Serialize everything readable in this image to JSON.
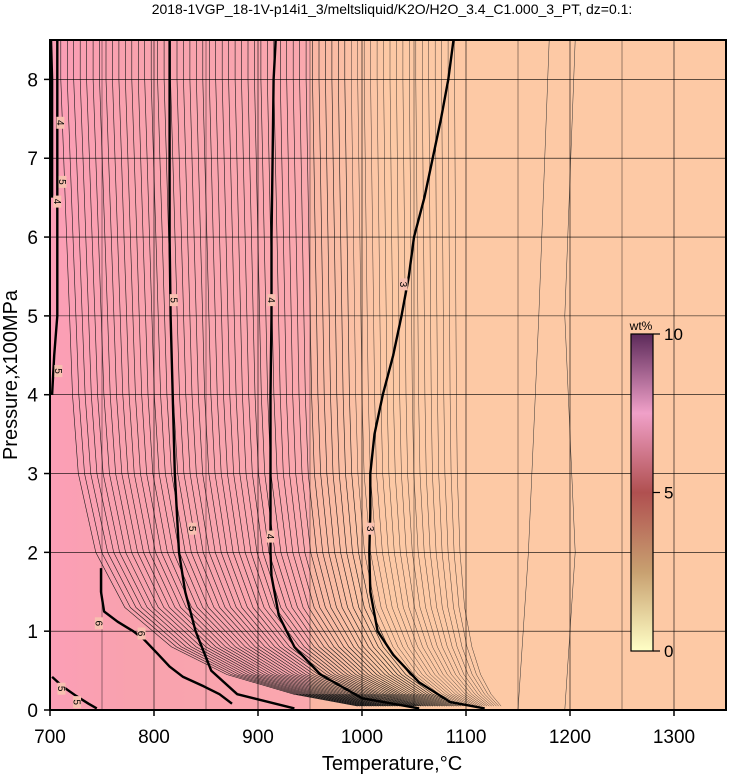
{
  "chart_data": {
    "type": "heatmap",
    "title": "2018-1VGP_18-1V-p14i1_3/meltsliquid/K2O/H2O_3.4_C1.000_3_PT, dz=0.1:",
    "xlabel": "Temperature,°C",
    "ylabel": "Pressure,x100MPa",
    "xlim": [
      700,
      1350
    ],
    "ylim": [
      0,
      8.5
    ],
    "x_ticks": [
      700,
      800,
      900,
      1000,
      1100,
      1200,
      1300
    ],
    "x_tick_labels": [
      "700",
      "800",
      "900",
      "1000",
      "1100",
      "1200",
      "1300"
    ],
    "y_ticks": [
      0,
      1,
      2,
      3,
      4,
      5,
      6,
      7,
      8
    ],
    "y_tick_labels": [
      "0",
      "1",
      "2",
      "3",
      "4",
      "5",
      "6",
      "7",
      "8"
    ],
    "grid": true,
    "colorbar": {
      "unit": "wt%",
      "min": 0,
      "max": 10,
      "ticks": [
        0,
        5,
        10
      ],
      "tick_labels": [
        "0",
        "5",
        "10"
      ],
      "colors": [
        "#ffffc6",
        "#c8a070",
        "#b05050",
        "#f0a0c8",
        "#5c2a5a"
      ]
    },
    "background_colors": {
      "low_value": "#fdc9a5",
      "mid_value": "#f6a6a4",
      "high_value": "#fb9fb6"
    },
    "contour_interval": 0.1,
    "labeled_contours": [
      {
        "level": 3,
        "label": "3",
        "points": [
          [
            1118,
            0.02
          ],
          [
            1085,
            0.1
          ],
          [
            1055,
            0.35
          ],
          [
            1030,
            0.7
          ],
          [
            1015,
            1.0
          ],
          [
            1008,
            1.5
          ],
          [
            1007,
            2.0
          ],
          [
            1008,
            2.5
          ],
          [
            1008,
            3.0
          ],
          [
            1012,
            3.5
          ],
          [
            1020,
            4.0
          ],
          [
            1030,
            4.5
          ],
          [
            1038,
            5.0
          ],
          [
            1045,
            5.5
          ],
          [
            1050,
            6.0
          ],
          [
            1060,
            6.5
          ],
          [
            1068,
            7.0
          ],
          [
            1076,
            7.5
          ],
          [
            1083,
            8.0
          ],
          [
            1088,
            8.5
          ]
        ]
      },
      {
        "level": 4,
        "label": "4",
        "points": [
          [
            1055,
            0.02
          ],
          [
            1000,
            0.15
          ],
          [
            960,
            0.45
          ],
          [
            935,
            0.8
          ],
          [
            920,
            1.2
          ],
          [
            913,
            1.7
          ],
          [
            912,
            2.0
          ],
          [
            912,
            3.0
          ],
          [
            912,
            4.0
          ],
          [
            913,
            5.0
          ],
          [
            913,
            6.0
          ],
          [
            914,
            7.0
          ],
          [
            915,
            8.0
          ],
          [
            917,
            8.5
          ]
        ]
      },
      {
        "level": 5,
        "label": "5",
        "points": [
          [
            935,
            0.02
          ],
          [
            880,
            0.2
          ],
          [
            855,
            0.5
          ],
          [
            840,
            1.0
          ],
          [
            830,
            1.5
          ],
          [
            824,
            2.0
          ],
          [
            820,
            3.0
          ],
          [
            818,
            4.0
          ],
          [
            816,
            5.0
          ],
          [
            815,
            6.0
          ],
          [
            815,
            7.0
          ],
          [
            815,
            8.0
          ],
          [
            815,
            8.5
          ]
        ]
      },
      {
        "level": 6,
        "label": "6",
        "points": [
          [
            749,
            1.8
          ],
          [
            749,
            1.5
          ],
          [
            752,
            1.25
          ],
          [
            765,
            1.12
          ],
          [
            780,
            1.0
          ],
          [
            790,
            0.9
          ],
          [
            803,
            0.72
          ],
          [
            815,
            0.55
          ],
          [
            828,
            0.42
          ],
          [
            848,
            0.3
          ],
          [
            863,
            0.2
          ],
          [
            875,
            0.08
          ]
        ]
      },
      {
        "level": 5,
        "label": "5",
        "points": [
          [
            707,
            8.5
          ],
          [
            707,
            8.0
          ],
          [
            707,
            7.0
          ],
          [
            707,
            6.0
          ],
          [
            707,
            5.0
          ],
          [
            704,
            4.5
          ],
          [
            702,
            4.0
          ]
        ]
      },
      {
        "level": 4,
        "label": "4",
        "points": [
          [
            701,
            8.5
          ],
          [
            702,
            8.0
          ],
          [
            702,
            7.5
          ],
          [
            702,
            7.0
          ],
          [
            702,
            6.5
          ]
        ]
      },
      {
        "level": 5,
        "label": "5",
        "points": [
          [
            702,
            0.42
          ],
          [
            712,
            0.3
          ],
          [
            725,
            0.18
          ],
          [
            737,
            0.08
          ],
          [
            745,
            0.02
          ]
        ]
      }
    ],
    "contour_label_positions": [
      {
        "text": "3",
        "x": 1040,
        "y": 5.4
      },
      {
        "text": "3",
        "x": 1008,
        "y": 2.3
      },
      {
        "text": "4",
        "x": 913,
        "y": 5.2
      },
      {
        "text": "4",
        "x": 912,
        "y": 2.2
      },
      {
        "text": "5",
        "x": 819,
        "y": 5.2
      },
      {
        "text": "5",
        "x": 837,
        "y": 2.3
      },
      {
        "text": "5",
        "x": 712,
        "y": 6.7
      },
      {
        "text": "5",
        "x": 708,
        "y": 4.3
      },
      {
        "text": "4",
        "x": 710,
        "y": 7.45
      },
      {
        "text": "4",
        "x": 707,
        "y": 6.45
      },
      {
        "text": "6",
        "x": 747,
        "y": 1.1
      },
      {
        "text": "6",
        "x": 788,
        "y": 0.97
      },
      {
        "text": "5",
        "x": 711,
        "y": 0.27
      },
      {
        "text": "5",
        "x": 726,
        "y": 0.1
      }
    ]
  }
}
